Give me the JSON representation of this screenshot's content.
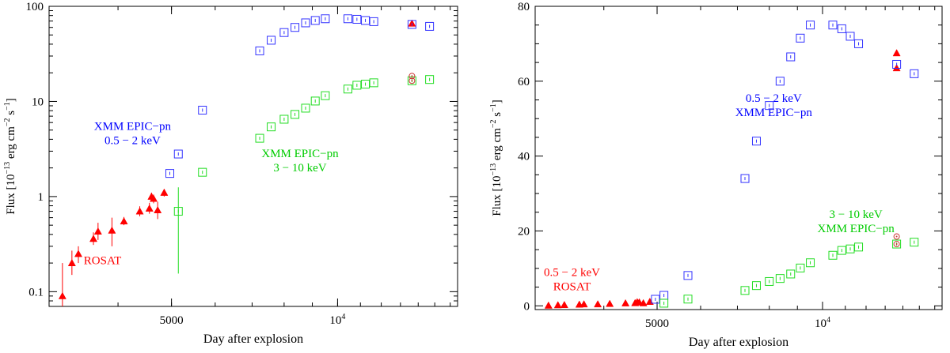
{
  "chart_data": [
    {
      "type": "scatter",
      "xscale": "log",
      "yscale": "log",
      "xlabel": "Day after explosion",
      "ylabel": "Flux [10",
      "ylabel_exp1": "−13",
      "ylabel_mid": " erg cm",
      "ylabel_exp2": "−2",
      "ylabel_mid2": " s",
      "ylabel_exp3": "−1",
      "ylabel_end": "]",
      "xlim": [
        3000,
        16500
      ],
      "ylim": [
        0.07,
        100
      ],
      "xticks": [
        {
          "value": 5000,
          "label": "5000",
          "pow": false
        },
        {
          "value": 10000,
          "label": "10",
          "exp": "4",
          "pow": true
        }
      ],
      "yticks": [
        {
          "value": 0.1,
          "label": "0.1"
        },
        {
          "value": 1,
          "label": "1"
        },
        {
          "value": 10,
          "label": "10"
        },
        {
          "value": 100,
          "label": "100"
        }
      ],
      "annotations": [
        {
          "lines": [
            "XMM EPIC−pn",
            "0.5 − 2 keV"
          ],
          "color": "#0000ff",
          "x": 4250,
          "y": 5.0
        },
        {
          "lines": [
            "XMM EPIC−pn",
            "3 − 10 keV"
          ],
          "color": "#00cc00",
          "x": 8550,
          "y": 2.6
        },
        {
          "lines": [
            "ROSAT"
          ],
          "color": "#ff0000",
          "x": 3750,
          "y": 0.195
        }
      ],
      "series": [
        {
          "name": "ROSAT",
          "marker": "triangle",
          "color": "#ff0000",
          "points": [
            {
              "x": 3172,
              "y": 0.09,
              "ylo": 0.065,
              "yhi": 0.2
            },
            {
              "x": 3300,
              "y": 0.2,
              "ylo": 0.15,
              "yhi": 0.27
            },
            {
              "x": 3390,
              "y": 0.25,
              "ylo": 0.2,
              "yhi": 0.3
            },
            {
              "x": 3610,
              "y": 0.36,
              "ylo": 0.31,
              "yhi": 0.42
            },
            {
              "x": 3680,
              "y": 0.43,
              "ylo": 0.35,
              "yhi": 0.53
            },
            {
              "x": 3900,
              "y": 0.44,
              "ylo": 0.3,
              "yhi": 0.6
            },
            {
              "x": 4100,
              "y": 0.55,
              "ylo": 0.5,
              "yhi": 0.61
            },
            {
              "x": 4380,
              "y": 0.7,
              "ylo": 0.62,
              "yhi": 0.79
            },
            {
              "x": 4560,
              "y": 0.75,
              "ylo": 0.66,
              "yhi": 0.86
            },
            {
              "x": 4600,
              "y": 1.0,
              "ylo": 0.9,
              "yhi": 1.1
            },
            {
              "x": 4640,
              "y": 0.95,
              "ylo": 0.85,
              "yhi": 1.05
            },
            {
              "x": 4720,
              "y": 0.72,
              "ylo": 0.58,
              "yhi": 0.88
            },
            {
              "x": 4850,
              "y": 1.1,
              "ylo": 1.0,
              "yhi": 1.2
            },
            {
              "x": 13640,
              "y": 66,
              "ylo": 62,
              "yhi": 70
            }
          ]
        },
        {
          "name": "XMM EPIC-pn 0.5 - 2 keV",
          "marker": "square",
          "color": "#3333ff",
          "points": [
            {
              "x": 4965,
              "y": 1.75
            },
            {
              "x": 5145,
              "y": 2.8
            },
            {
              "x": 5690,
              "y": 8.1
            },
            {
              "x": 7225,
              "y": 34
            },
            {
              "x": 7580,
              "y": 44
            },
            {
              "x": 8000,
              "y": 53
            },
            {
              "x": 8370,
              "y": 60
            },
            {
              "x": 8750,
              "y": 67
            },
            {
              "x": 9110,
              "y": 71
            },
            {
              "x": 9500,
              "y": 74
            },
            {
              "x": 10440,
              "y": 74
            },
            {
              "x": 10840,
              "y": 73
            },
            {
              "x": 11230,
              "y": 71
            },
            {
              "x": 11630,
              "y": 69
            },
            {
              "x": 13640,
              "y": 64.5
            },
            {
              "x": 14680,
              "y": 61.5
            }
          ]
        },
        {
          "name": "XMM EPIC-pn 3 - 10 keV",
          "marker": "square",
          "color": "#22dd22",
          "points": [
            {
              "x": 5145,
              "y": 0.7,
              "ylo": 0.155,
              "yhi": 1.25
            },
            {
              "x": 5690,
              "y": 1.8
            },
            {
              "x": 7225,
              "y": 4.1
            },
            {
              "x": 7580,
              "y": 5.4
            },
            {
              "x": 8000,
              "y": 6.5
            },
            {
              "x": 8370,
              "y": 7.3
            },
            {
              "x": 8750,
              "y": 8.5
            },
            {
              "x": 9110,
              "y": 10.1
            },
            {
              "x": 9500,
              "y": 11.5
            },
            {
              "x": 10440,
              "y": 13.5
            },
            {
              "x": 10840,
              "y": 14.8
            },
            {
              "x": 11230,
              "y": 15.2
            },
            {
              "x": 11630,
              "y": 15.7
            },
            {
              "x": 13640,
              "y": 16.5
            },
            {
              "x": 14680,
              "y": 17
            }
          ]
        },
        {
          "name": "open circles",
          "marker": "circle",
          "color": "#cc3333",
          "points": [
            {
              "x": 13640,
              "y": 18.5
            },
            {
              "x": 13640,
              "y": 16.5
            }
          ]
        }
      ]
    },
    {
      "type": "scatter",
      "xscale": "log",
      "yscale": "linear",
      "xlabel": "Day after explosion",
      "ylabel": "Flux [10",
      "ylabel_exp1": "−13",
      "ylabel_mid": " erg cm",
      "ylabel_exp2": "−2",
      "ylabel_mid2": " s",
      "ylabel_exp3": "−1",
      "ylabel_end": "]",
      "xlim": [
        3000,
        16500
      ],
      "ylim": [
        -1,
        80
      ],
      "xticks": [
        {
          "value": 5000,
          "label": "5000",
          "pow": false
        },
        {
          "value": 10000,
          "label": "10",
          "exp": "4",
          "pow": true
        }
      ],
      "yticks": [
        {
          "value": 0,
          "label": "0"
        },
        {
          "value": 20,
          "label": "20"
        },
        {
          "value": 40,
          "label": "40"
        },
        {
          "value": 60,
          "label": "60"
        },
        {
          "value": 80,
          "label": "80"
        }
      ],
      "annotations": [
        {
          "lines": [
            "0.5 − 2 keV",
            "XMM EPIC−pn"
          ],
          "color": "#0000ff",
          "x": 8150,
          "y": 54.5
        },
        {
          "lines": [
            "3 − 10 keV",
            "XMM EPIC−pn"
          ],
          "color": "#00cc00",
          "x": 11500,
          "y": 23.5
        },
        {
          "lines": [
            "0.5 − 2 keV",
            "ROSAT"
          ],
          "color": "#ff0000",
          "x": 3500,
          "y": 8
        }
      ],
      "series": [
        {
          "name": "ROSAT",
          "marker": "triangle",
          "color": "#ff0000",
          "points": [
            {
              "x": 3172,
              "y": 0.09
            },
            {
              "x": 3300,
              "y": 0.2
            },
            {
              "x": 3390,
              "y": 0.25
            },
            {
              "x": 3610,
              "y": 0.36
            },
            {
              "x": 3680,
              "y": 0.43
            },
            {
              "x": 3900,
              "y": 0.44
            },
            {
              "x": 4100,
              "y": 0.55
            },
            {
              "x": 4380,
              "y": 0.7
            },
            {
              "x": 4560,
              "y": 0.75
            },
            {
              "x": 4600,
              "y": 1.0
            },
            {
              "x": 4640,
              "y": 0.95
            },
            {
              "x": 4720,
              "y": 0.72
            },
            {
              "x": 4850,
              "y": 1.1
            },
            {
              "x": 13640,
              "y": 67.5
            },
            {
              "x": 13640,
              "y": 63.5
            }
          ]
        },
        {
          "name": "XMM EPIC-pn 0.5 - 2 keV",
          "marker": "square",
          "color": "#3333ff",
          "points": [
            {
              "x": 4965,
              "y": 1.75
            },
            {
              "x": 5145,
              "y": 2.8
            },
            {
              "x": 5690,
              "y": 8.1
            },
            {
              "x": 7225,
              "y": 34
            },
            {
              "x": 7580,
              "y": 44
            },
            {
              "x": 8000,
              "y": 53.5
            },
            {
              "x": 8370,
              "y": 60
            },
            {
              "x": 8750,
              "y": 66.5
            },
            {
              "x": 9110,
              "y": 71.5
            },
            {
              "x": 9500,
              "y": 75
            },
            {
              "x": 10440,
              "y": 75
            },
            {
              "x": 10840,
              "y": 74
            },
            {
              "x": 11230,
              "y": 72
            },
            {
              "x": 11630,
              "y": 70
            },
            {
              "x": 13640,
              "y": 64.5
            },
            {
              "x": 14680,
              "y": 62
            }
          ]
        },
        {
          "name": "XMM EPIC-pn 3 - 10 keV",
          "marker": "square",
          "color": "#22dd22",
          "points": [
            {
              "x": 5145,
              "y": 0.7
            },
            {
              "x": 5690,
              "y": 1.8
            },
            {
              "x": 7225,
              "y": 4.1
            },
            {
              "x": 7580,
              "y": 5.4
            },
            {
              "x": 8000,
              "y": 6.5
            },
            {
              "x": 8370,
              "y": 7.3
            },
            {
              "x": 8750,
              "y": 8.5
            },
            {
              "x": 9110,
              "y": 10.1
            },
            {
              "x": 9500,
              "y": 11.5
            },
            {
              "x": 10440,
              "y": 13.5
            },
            {
              "x": 10840,
              "y": 14.8
            },
            {
              "x": 11230,
              "y": 15.2
            },
            {
              "x": 11630,
              "y": 15.7
            },
            {
              "x": 13640,
              "y": 16.5
            },
            {
              "x": 14680,
              "y": 17
            }
          ]
        },
        {
          "name": "open circles",
          "marker": "circle",
          "color": "#cc3333",
          "points": [
            {
              "x": 13640,
              "y": 18.5
            },
            {
              "x": 13640,
              "y": 16.5
            }
          ]
        }
      ]
    }
  ]
}
